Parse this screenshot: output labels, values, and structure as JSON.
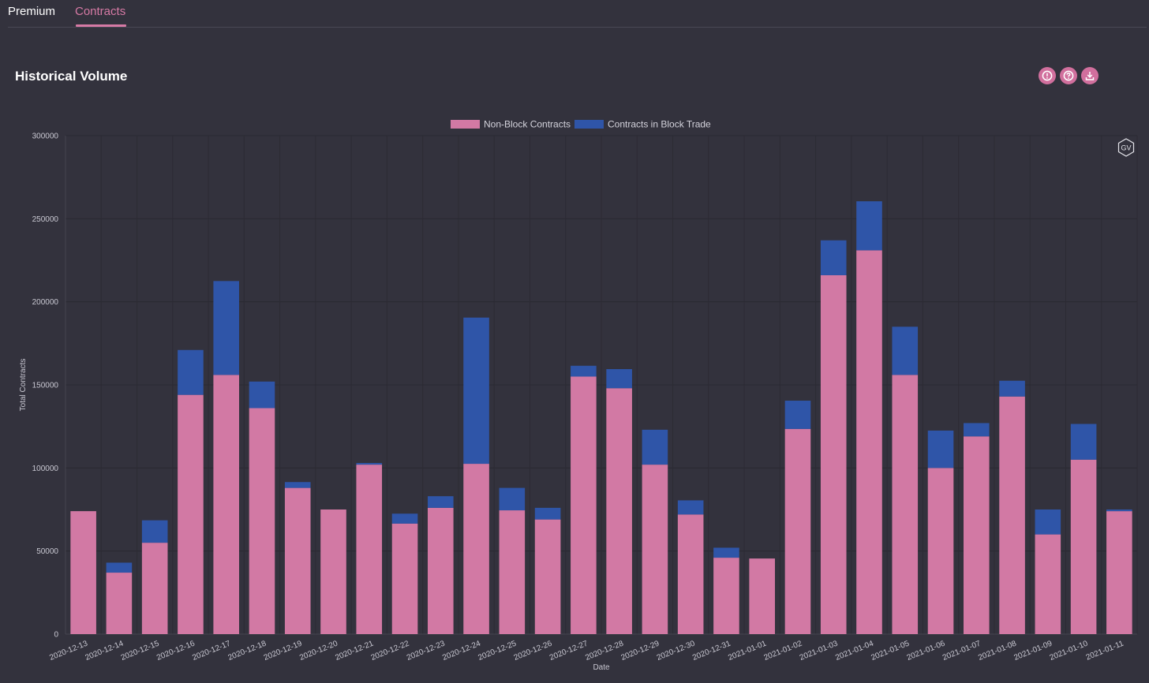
{
  "tabs": [
    {
      "label": "Premium"
    },
    {
      "label": "Contracts"
    }
  ],
  "section": {
    "title": "Historical Volume"
  },
  "icons": {
    "info": "info-icon",
    "help": "help-icon",
    "download": "download-icon",
    "watermark": "GV"
  },
  "colors": {
    "background": "#33323d",
    "accent": "#d16f9d",
    "non_block": "#d279a4",
    "block": "#2f55a8"
  },
  "chart_data": {
    "type": "bar",
    "stacked": true,
    "title": "",
    "xlabel": "Date",
    "ylabel": "Total Contracts",
    "ylim": [
      0,
      300000
    ],
    "yticks": [
      0,
      50000,
      100000,
      150000,
      200000,
      250000,
      300000
    ],
    "legend": "top-center",
    "grid": true,
    "categories": [
      "2020-12-13",
      "2020-12-14",
      "2020-12-15",
      "2020-12-16",
      "2020-12-17",
      "2020-12-18",
      "2020-12-19",
      "2020-12-20",
      "2020-12-21",
      "2020-12-22",
      "2020-12-23",
      "2020-12-24",
      "2020-12-25",
      "2020-12-26",
      "2020-12-27",
      "2020-12-28",
      "2020-12-29",
      "2020-12-30",
      "2020-12-31",
      "2021-01-01",
      "2021-01-02",
      "2021-01-03",
      "2021-01-04",
      "2021-01-05",
      "2021-01-06",
      "2021-01-07",
      "2021-01-08",
      "2021-01-09",
      "2021-01-10",
      "2021-01-11"
    ],
    "series": [
      {
        "name": "Non-Block Contracts",
        "color": "#d279a4",
        "values": [
          74000,
          37000,
          55000,
          144000,
          156000,
          136000,
          88000,
          75000,
          102000,
          66500,
          76000,
          102500,
          74500,
          69000,
          155000,
          148000,
          102000,
          72000,
          46000,
          45500,
          123500,
          216000,
          231000,
          156000,
          100000,
          119000,
          143000,
          60000,
          105000,
          74000
        ]
      },
      {
        "name": "Contracts in Block Trade",
        "color": "#2f55a8",
        "values": [
          0,
          6000,
          13500,
          27000,
          56500,
          16000,
          3500,
          0,
          1000,
          6000,
          7000,
          88000,
          13500,
          7000,
          6500,
          11500,
          21000,
          8500,
          6000,
          0,
          17000,
          21000,
          29500,
          29000,
          22500,
          8000,
          9500,
          15000,
          21500,
          1000
        ]
      }
    ]
  }
}
